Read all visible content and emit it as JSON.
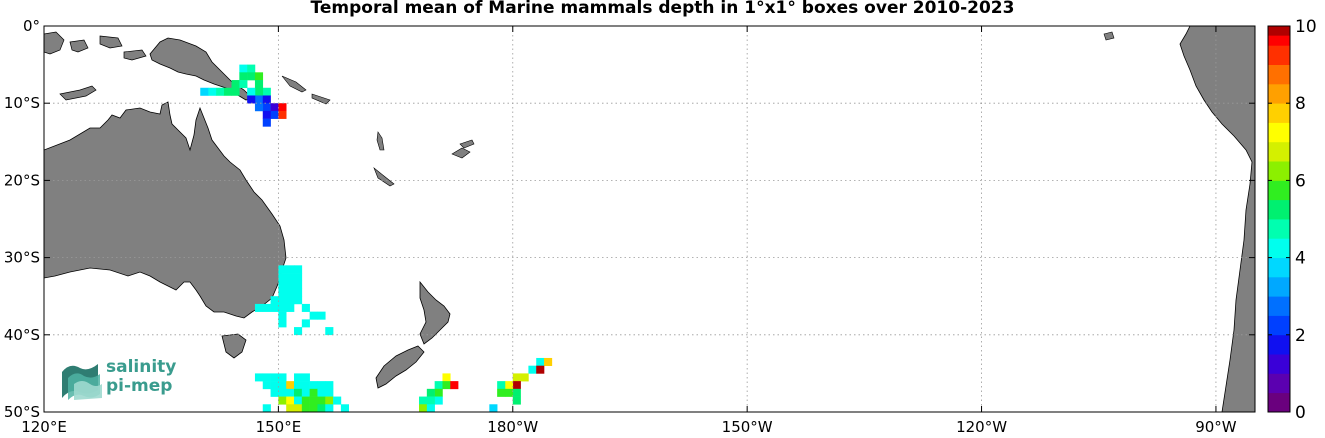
{
  "title": "Temporal mean of Marine mammals depth in 1°x1° boxes over 2010-2023",
  "map": {
    "lon_min": 120,
    "lon_max": 275,
    "lat_min": -50,
    "lat_max": 0,
    "lat_ticks": [
      {
        "lat": 0,
        "label": "0°"
      },
      {
        "lat": -10,
        "label": "10°S"
      },
      {
        "lat": -20,
        "label": "20°S"
      },
      {
        "lat": -30,
        "label": "30°S"
      },
      {
        "lat": -40,
        "label": "40°S"
      },
      {
        "lat": -50,
        "label": "50°S"
      }
    ],
    "lon_ticks": [
      {
        "lon": 120,
        "label": "120°E"
      },
      {
        "lon": 150,
        "label": "150°E"
      },
      {
        "lon": 180,
        "label": "180°W"
      },
      {
        "lon": 210,
        "label": "150°W"
      },
      {
        "lon": 240,
        "label": "120°W"
      },
      {
        "lon": 270,
        "label": "90°W"
      }
    ],
    "land_color": "#808080",
    "ocean_color": "#ffffff",
    "grid": true
  },
  "colorbar": {
    "min": 0,
    "max": 10,
    "levels": 20,
    "ticks": [
      "0",
      "2",
      "4",
      "6",
      "8",
      "10"
    ],
    "colors": [
      "#6a007e",
      "#5b00b0",
      "#3a00d8",
      "#1010f0",
      "#0040ff",
      "#0070ff",
      "#00a8ff",
      "#00d8ff",
      "#00ffee",
      "#00ffb0",
      "#00f070",
      "#30ee20",
      "#8cf000",
      "#d4f000",
      "#ffff00",
      "#ffd000",
      "#ffa000",
      "#ff7000",
      "#ff3000",
      "#ff0000"
    ],
    "top_color": "#b00000"
  },
  "chart_data": {
    "type": "heatmap",
    "title": "Temporal mean of Marine mammals depth in 1°x1° boxes over 2010-2023",
    "value_range": [
      0,
      10
    ],
    "cells": [
      [
        145,
        -6,
        4.2
      ],
      [
        146,
        -6,
        4.6
      ],
      [
        146,
        -7,
        5.0
      ],
      [
        147,
        -7,
        5.6
      ],
      [
        145,
        -7,
        5.4
      ],
      [
        144,
        -8,
        5.2
      ],
      [
        145,
        -8,
        4.6
      ],
      [
        144,
        -9,
        5.4
      ],
      [
        143,
        -9,
        5.0
      ],
      [
        142,
        -9,
        4.6
      ],
      [
        141,
        -9,
        4.2
      ],
      [
        140,
        -9,
        3.8
      ],
      [
        147,
        -8,
        5.2
      ],
      [
        148,
        -9,
        4.8
      ],
      [
        147,
        -9,
        5.2
      ],
      [
        146,
        -9,
        4.0
      ],
      [
        147,
        -10,
        2.8
      ],
      [
        148,
        -10,
        1.8
      ],
      [
        146,
        -10,
        1.6
      ],
      [
        148,
        -11,
        2.0
      ],
      [
        147,
        -11,
        2.6
      ],
      [
        149,
        -11,
        1.2
      ],
      [
        150,
        -11,
        9.6
      ],
      [
        149,
        -12,
        2.4
      ],
      [
        150,
        -12,
        9.0
      ],
      [
        148,
        -12,
        1.6
      ],
      [
        148,
        -13,
        2.2
      ],
      [
        150,
        -32,
        4.0
      ],
      [
        151,
        -32,
        4.0
      ],
      [
        152,
        -32,
        4.0
      ],
      [
        150,
        -33,
        4.0
      ],
      [
        151,
        -33,
        4.0
      ],
      [
        152,
        -33,
        4.0
      ],
      [
        150,
        -34,
        4.0
      ],
      [
        151,
        -34,
        4.0
      ],
      [
        152,
        -34,
        4.0
      ],
      [
        150,
        -35,
        4.0
      ],
      [
        151,
        -35,
        4.0
      ],
      [
        152,
        -35,
        4.0
      ],
      [
        149,
        -36,
        4.0
      ],
      [
        150,
        -36,
        4.0
      ],
      [
        151,
        -36,
        4.0
      ],
      [
        152,
        -36,
        4.0
      ],
      [
        147,
        -37,
        4.0
      ],
      [
        148,
        -37,
        4.0
      ],
      [
        149,
        -37,
        4.0
      ],
      [
        150,
        -37,
        4.0
      ],
      [
        151,
        -37,
        4.0
      ],
      [
        153,
        -37,
        4.0
      ],
      [
        150,
        -38,
        4.0
      ],
      [
        154,
        -38,
        4.0
      ],
      [
        155,
        -38,
        4.0
      ],
      [
        153,
        -39,
        4.0
      ],
      [
        150,
        -39,
        4.0
      ],
      [
        152,
        -40,
        4.0
      ],
      [
        156,
        -40,
        4.0
      ],
      [
        147,
        -46,
        4.0
      ],
      [
        148,
        -46,
        4.0
      ],
      [
        149,
        -46,
        4.0
      ],
      [
        150,
        -46,
        4.0
      ],
      [
        152,
        -46,
        4.0
      ],
      [
        153,
        -46,
        4.0
      ],
      [
        148,
        -47,
        4.0
      ],
      [
        149,
        -47,
        4.0
      ],
      [
        150,
        -47,
        4.0
      ],
      [
        151,
        -47,
        7.6
      ],
      [
        152,
        -47,
        4.0
      ],
      [
        153,
        -47,
        4.0
      ],
      [
        154,
        -47,
        4.0
      ],
      [
        155,
        -47,
        4.0
      ],
      [
        156,
        -47,
        4.0
      ],
      [
        149,
        -48,
        4.0
      ],
      [
        150,
        -48,
        4.0
      ],
      [
        151,
        -48,
        4.0
      ],
      [
        152,
        -48,
        5.4
      ],
      [
        153,
        -48,
        4.4
      ],
      [
        154,
        -48,
        5.6
      ],
      [
        155,
        -48,
        4.2
      ],
      [
        156,
        -48,
        4.0
      ],
      [
        150,
        -49,
        6.2
      ],
      [
        151,
        -49,
        7.0
      ],
      [
        152,
        -49,
        4.4
      ],
      [
        153,
        -49,
        5.8
      ],
      [
        154,
        -49,
        5.6
      ],
      [
        155,
        -49,
        5.8
      ],
      [
        156,
        -49,
        6.2
      ],
      [
        157,
        -49,
        4.2
      ],
      [
        148,
        -50,
        4.0
      ],
      [
        151,
        -50,
        6.8
      ],
      [
        152,
        -50,
        6.8
      ],
      [
        153,
        -50,
        5.8
      ],
      [
        154,
        -50,
        5.8
      ],
      [
        155,
        -50,
        5.4
      ],
      [
        156,
        -50,
        4.2
      ],
      [
        158,
        -50,
        4.0
      ],
      [
        171,
        -46,
        7.0
      ],
      [
        170,
        -47,
        4.6
      ],
      [
        171,
        -47,
        5.6
      ],
      [
        172,
        -47,
        9.6
      ],
      [
        170,
        -48,
        5.6
      ],
      [
        169,
        -48,
        5.2
      ],
      [
        170,
        -49,
        4.2
      ],
      [
        168,
        -49,
        4.6
      ],
      [
        169,
        -49,
        4.8
      ],
      [
        168,
        -50,
        6.0
      ],
      [
        169,
        -50,
        4.2
      ],
      [
        183,
        -44,
        4.2
      ],
      [
        184,
        -44,
        7.6
      ],
      [
        182,
        -45,
        4.0
      ],
      [
        183,
        -45,
        10.0
      ],
      [
        181,
        -46,
        6.6
      ],
      [
        180,
        -46,
        6.8
      ],
      [
        180,
        -47,
        10.0
      ],
      [
        179,
        -47,
        7.0
      ],
      [
        178,
        -47,
        4.6
      ],
      [
        180,
        -48,
        5.4
      ],
      [
        179,
        -48,
        5.8
      ],
      [
        178,
        -48,
        5.6
      ],
      [
        180,
        -49,
        5.4
      ],
      [
        177,
        -50,
        3.8
      ]
    ]
  },
  "logo": {
    "line1": "salinity",
    "line2": "pi-mep"
  }
}
